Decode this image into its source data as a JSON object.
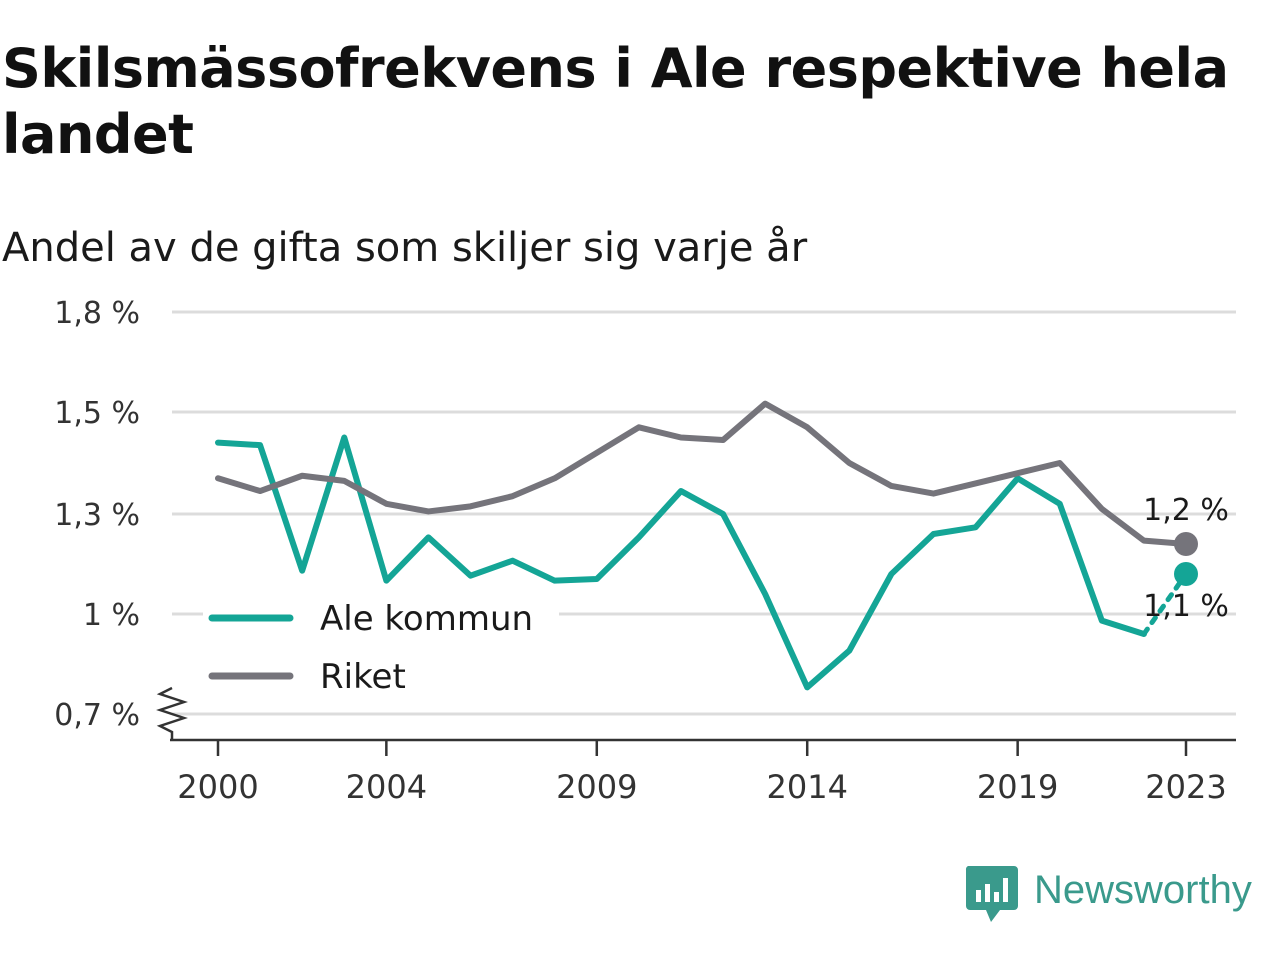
{
  "title": "Skilsmässofrekvens i Ale respektive hela landet",
  "subtitle": "Andel av de gifta som skiljer sig varje år",
  "brand": "Newsworthy",
  "colors": {
    "ale": "#14a596",
    "riket": "#75747b",
    "grid": "#dcdcdc",
    "axis": "#333333",
    "brand": "#3a9a8c"
  },
  "chart_data": {
    "type": "line",
    "title": "Skilsmässofrekvens i Ale respektive hela landet",
    "subtitle": "Andel av de gifta som skiljer sig varje år",
    "x": [
      2000,
      2001,
      2002,
      2003,
      2004,
      2005,
      2006,
      2007,
      2008,
      2009,
      2010,
      2011,
      2012,
      2013,
      2014,
      2015,
      2016,
      2017,
      2018,
      2019,
      2020,
      2021,
      2022,
      2023
    ],
    "x_ticks": [
      2000,
      2004,
      2009,
      2014,
      2019,
      2023
    ],
    "x_tick_labels": [
      "2000",
      "2004",
      "2009",
      "2014",
      "2019",
      "2023"
    ],
    "xlim": [
      1999,
      2024.2
    ],
    "ylim": [
      0.7,
      1.8
    ],
    "y_ticks": [
      0.7,
      1.0,
      1.3,
      1.5,
      1.8
    ],
    "y_tick_labels": [
      "0,7 %",
      "1 %",
      "1,3 %",
      "1,5 %",
      "1,8 %"
    ],
    "y_axis_break": true,
    "grid": true,
    "legend_position": "lower-left",
    "series": [
      {
        "name": "Ale kommun",
        "color": "#14a596",
        "values": [
          1.44,
          1.435,
          1.13,
          1.45,
          1.1,
          1.23,
          1.115,
          1.16,
          1.1,
          1.105,
          1.23,
          1.345,
          1.3,
          1.06,
          0.78,
          0.89,
          1.12,
          1.24,
          1.26,
          1.37,
          1.32,
          0.98,
          0.94,
          1.12
        ],
        "end_label": "1,1 %",
        "last_segment_dashed": true
      },
      {
        "name": "Riket",
        "color": "#75747b",
        "values": [
          1.37,
          1.345,
          1.375,
          1.365,
          1.32,
          1.305,
          1.315,
          1.335,
          1.37,
          1.42,
          1.47,
          1.45,
          1.445,
          1.525,
          1.47,
          1.4,
          1.355,
          1.34,
          1.36,
          1.38,
          1.4,
          1.31,
          1.22,
          1.21
        ],
        "end_label": "1,2 %",
        "last_segment_dashed": false
      }
    ]
  }
}
